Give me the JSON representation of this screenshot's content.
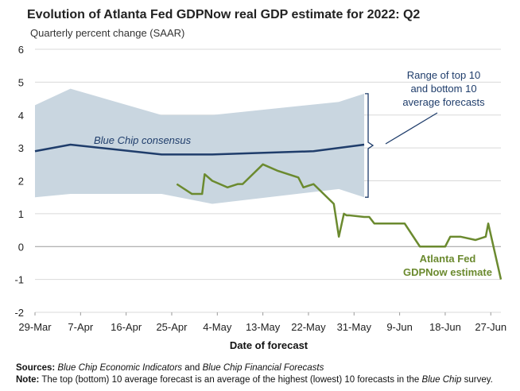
{
  "chart_data": {
    "type": "line",
    "title": "Evolution of Atlanta Fed GDPNow real GDP estimate for 2022: Q2",
    "subtitle": "Quarterly percent change (SAAR)",
    "xlabel": "Date of forecast",
    "ylabel": "",
    "ylim": [
      -2,
      6
    ],
    "yticks": [
      -2,
      -1,
      0,
      1,
      2,
      3,
      4,
      5,
      6
    ],
    "xlim_days": [
      0,
      92
    ],
    "xticks": [
      {
        "d": 0,
        "label": "29-Mar"
      },
      {
        "d": 9,
        "label": "7-Apr"
      },
      {
        "d": 18,
        "label": "16-Apr"
      },
      {
        "d": 27,
        "label": "25-Apr"
      },
      {
        "d": 36,
        "label": "4-May"
      },
      {
        "d": 45,
        "label": "13-May"
      },
      {
        "d": 54,
        "label": "22-May"
      },
      {
        "d": 63,
        "label": "31-May"
      },
      {
        "d": 72,
        "label": "9-Jun"
      },
      {
        "d": 81,
        "label": "18-Jun"
      },
      {
        "d": 90,
        "label": "27-Jun"
      }
    ],
    "grid": true,
    "range_band": {
      "name": "Range of top 10 and bottom 10 average forecasts",
      "x": [
        0,
        7,
        25,
        35,
        60,
        65
      ],
      "upper": [
        4.3,
        4.8,
        4.0,
        4.0,
        4.4,
        4.65
      ],
      "lower": [
        1.5,
        1.6,
        1.6,
        1.3,
        1.75,
        1.5
      ]
    },
    "series": [
      {
        "name": "Blue Chip consensus",
        "color": "#1f3d6b",
        "x": [
          0,
          7,
          25,
          35,
          55,
          65
        ],
        "values": [
          2.9,
          3.1,
          2.8,
          2.8,
          2.9,
          3.1
        ]
      },
      {
        "name": "Atlanta Fed GDPNow estimate",
        "color": "#6b8a2f",
        "x": [
          28,
          31,
          33,
          33.5,
          35,
          38,
          40,
          41,
          45,
          48,
          52,
          53,
          54,
          55,
          59,
          60,
          61,
          61.5,
          62,
          65,
          66,
          67,
          73,
          76,
          81,
          82,
          84,
          87,
          89,
          89.5,
          92
        ],
        "values": [
          1.9,
          1.6,
          1.6,
          2.2,
          2.0,
          1.8,
          1.9,
          1.9,
          2.5,
          2.3,
          2.1,
          1.8,
          1.85,
          1.9,
          1.3,
          0.3,
          1.0,
          0.95,
          0.95,
          0.9,
          0.9,
          0.7,
          0.7,
          0.0,
          0.0,
          0.3,
          0.3,
          0.2,
          0.3,
          0.7,
          -1.0
        ]
      }
    ]
  },
  "annotations": {
    "range_label_lines": [
      "Range of top 10",
      "and bottom 10",
      "average forecasts"
    ],
    "consensus_label": "Blue Chip consensus",
    "gdpnow_label_lines": [
      "Atlanta Fed",
      "GDPNow estimate"
    ]
  },
  "footer": {
    "sources_label": "Sources:",
    "sources_text_1": "Blue Chip Economic Indicators",
    "sources_and": " and ",
    "sources_text_2": "Blue Chip Financial Forecasts",
    "note_label": "Note:",
    "note_text_1": " The top (bottom) 10 average forecast is an average of the highest (lowest) 10 forecasts in the ",
    "note_text_em": "Blue Chip",
    "note_text_2": " survey."
  },
  "colors": {
    "band": "#c9d6e0",
    "consensus": "#1f3d6b",
    "gdpnow": "#6b8a2f",
    "grid": "#d9d9d9"
  }
}
